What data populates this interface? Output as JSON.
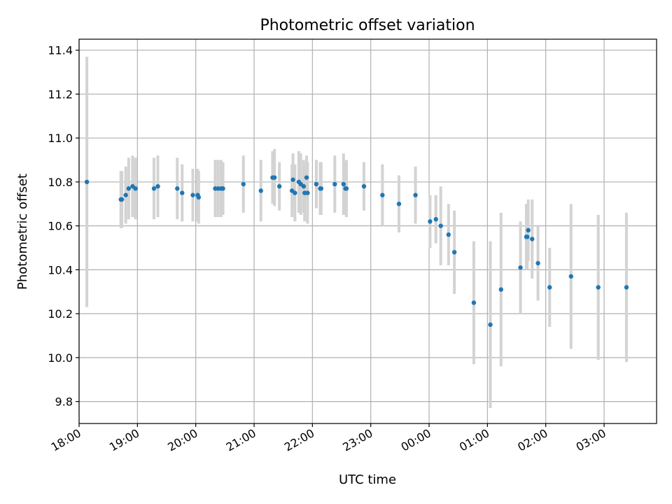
{
  "chart_data": {
    "type": "scatter",
    "title": "Photometric offset variation",
    "xlabel": "UTC time",
    "ylabel": "Photometric offset",
    "grid": true,
    "xlim": [
      "18:00",
      "03:54"
    ],
    "ylim": [
      9.7,
      11.45
    ],
    "x_ticks": [
      "18:00",
      "19:00",
      "20:00",
      "21:00",
      "22:00",
      "23:00",
      "00:00",
      "01:00",
      "02:00",
      "03:00"
    ],
    "y_ticks": [
      "9.8",
      "10.0",
      "10.2",
      "10.4",
      "10.6",
      "10.8",
      "11.0",
      "11.2",
      "11.4"
    ],
    "colors": {
      "marker": "#1f77b4",
      "errorbar": "#d3d3d3",
      "grid": "#b0b0b0"
    },
    "series": [
      {
        "x": [
          "18:08",
          "18:43",
          "18:44",
          "18:48",
          "18:51",
          "18:55",
          "18:58",
          "19:17",
          "19:21",
          "19:41",
          "19:46",
          "19:57",
          "20:02",
          "20:03",
          "20:20",
          "20:23",
          "20:26",
          "20:28",
          "20:49",
          "21:07",
          "21:19",
          "21:21",
          "21:26",
          "21:39",
          "21:40",
          "21:42",
          "21:46",
          "21:48",
          "21:51",
          "21:52",
          "21:54",
          "21:55",
          "22:04",
          "22:08",
          "22:09",
          "22:23",
          "22:32",
          "22:34",
          "22:35",
          "22:53",
          "23:12",
          "23:29",
          "23:46",
          "00:01",
          "00:07",
          "00:12",
          "00:20",
          "00:26",
          "00:46",
          "01:03",
          "01:14",
          "01:34",
          "01:40",
          "01:41",
          "01:42",
          "01:46",
          "01:52",
          "02:04",
          "02:26",
          "02:54",
          "03:23"
        ],
        "y": [
          10.8,
          10.72,
          10.72,
          10.74,
          10.77,
          10.78,
          10.77,
          10.77,
          10.78,
          10.77,
          10.75,
          10.74,
          10.74,
          10.73,
          10.77,
          10.77,
          10.77,
          10.77,
          10.79,
          10.76,
          10.82,
          10.82,
          10.78,
          10.76,
          10.81,
          10.75,
          10.8,
          10.79,
          10.78,
          10.75,
          10.82,
          10.75,
          10.79,
          10.77,
          10.77,
          10.79,
          10.79,
          10.77,
          10.77,
          10.78,
          10.74,
          10.7,
          10.74,
          10.62,
          10.63,
          10.6,
          10.56,
          10.48,
          10.25,
          10.15,
          10.31,
          10.41,
          10.55,
          10.55,
          10.58,
          10.54,
          10.43,
          10.32,
          10.37,
          10.32,
          10.32
        ],
        "yerr": [
          0.57,
          0.13,
          0.13,
          0.13,
          0.14,
          0.14,
          0.14,
          0.14,
          0.14,
          0.14,
          0.13,
          0.12,
          0.12,
          0.12,
          0.13,
          0.13,
          0.13,
          0.12,
          0.13,
          0.14,
          0.12,
          0.13,
          0.11,
          0.12,
          0.12,
          0.13,
          0.14,
          0.14,
          0.12,
          0.13,
          0.1,
          0.14,
          0.11,
          0.12,
          0.12,
          0.13,
          0.14,
          0.12,
          0.13,
          0.11,
          0.14,
          0.13,
          0.13,
          0.12,
          0.11,
          0.18,
          0.14,
          0.19,
          0.28,
          0.38,
          0.35,
          0.21,
          0.15,
          0.15,
          0.14,
          0.18,
          0.17,
          0.18,
          0.33,
          0.33,
          0.34
        ]
      }
    ]
  }
}
